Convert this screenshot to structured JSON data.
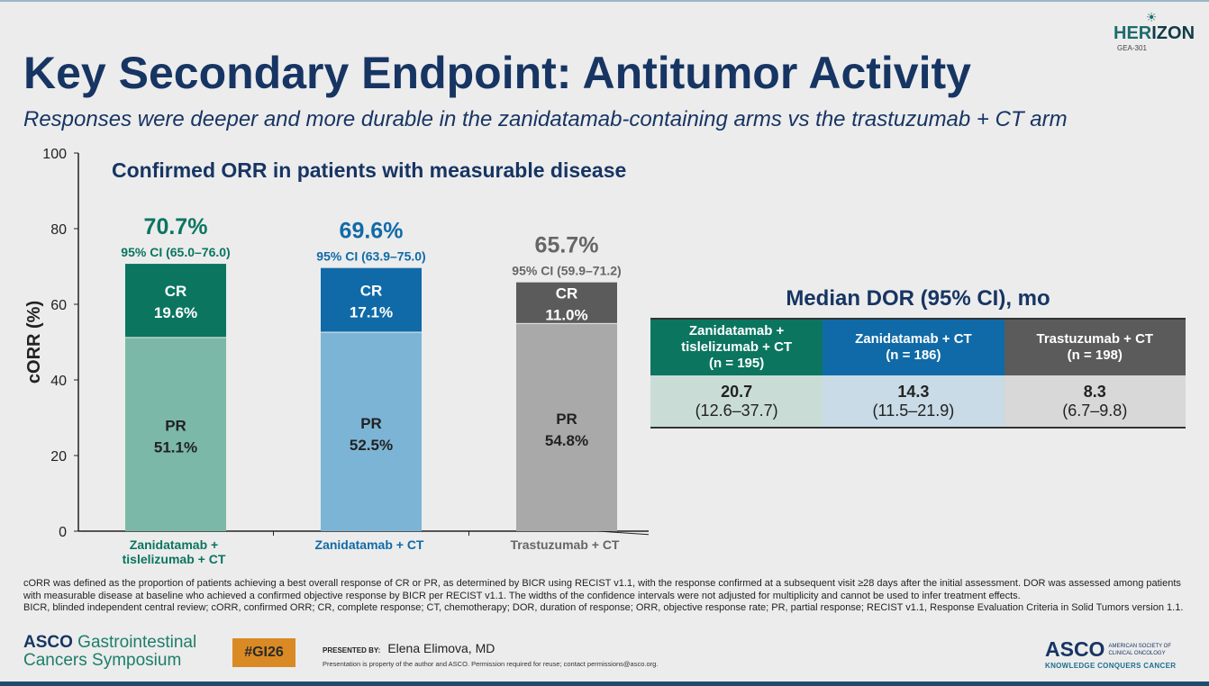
{
  "title": "Key Secondary Endpoint: Antitumor Activity",
  "subtitle": "Responses were deeper and more durable in the zanidatamab-containing arms vs the trastuzumab + CT arm",
  "logo": {
    "name_a": "HER",
    "name_b": "IZON",
    "sub": "GEA-301"
  },
  "chart_data": {
    "type": "bar",
    "stacked": true,
    "title": "Confirmed ORR in patients with measurable disease",
    "ylabel": "cORR (%)",
    "ylim": [
      0,
      100
    ],
    "yticks": [
      0,
      20,
      40,
      60,
      80,
      100
    ],
    "categories": [
      "Zanidatamab + tislelizumab + CT",
      "Zanidatamab + CT",
      "Trastuzumab + CT"
    ],
    "category_lines": [
      [
        "Zanidatamab +",
        "tislelizumab + CT"
      ],
      [
        "Zanidatamab + CT"
      ],
      [
        "Trastuzumab + CT"
      ]
    ],
    "series": [
      {
        "name": "PR",
        "values": [
          51.1,
          52.5,
          54.8
        ],
        "labels": [
          "51.1%",
          "52.5%",
          "54.8%"
        ]
      },
      {
        "name": "CR",
        "values": [
          19.6,
          17.1,
          11.0
        ],
        "labels": [
          "19.6%",
          "17.1%",
          "11.0%"
        ]
      }
    ],
    "totals": [
      "70.7%",
      "69.6%",
      "65.7%"
    ],
    "ci": [
      "95% CI (65.0–76.0)",
      "95% CI (63.9–75.0)",
      "95% CI (59.9–71.2)"
    ],
    "colors": {
      "cr": [
        "#0b7560",
        "#106aa8",
        "#5b5b5b"
      ],
      "pr": [
        "#7cb8a7",
        "#7cb4d5",
        "#a9a9a9"
      ],
      "label": [
        "#0b7560",
        "#106aa8",
        "#666666"
      ]
    }
  },
  "dor": {
    "title": "Median DOR (95% CI), mo",
    "columns": [
      {
        "l1": "Zanidatamab +",
        "l2": "tislelizumab + CT",
        "n": "(n = 195)",
        "median": "20.7",
        "ci": "(12.6–37.7)",
        "color": "#0b7560",
        "bg": "#c9ddd6"
      },
      {
        "l1": "",
        "l2": "Zanidatamab + CT",
        "n": "(n = 186)",
        "median": "14.3",
        "ci": "(11.5–21.9)",
        "color": "#106aa8",
        "bg": "#c8dbe6"
      },
      {
        "l1": "",
        "l2": "Trastuzumab + CT",
        "n": "(n = 198)",
        "median": "8.3",
        "ci": "(6.7–9.8)",
        "color": "#5b5b5b",
        "bg": "#d8d8d8"
      }
    ]
  },
  "footnotes": [
    "cORR was defined as the proportion of patients achieving a best overall response of CR or PR, as determined by BICR using RECIST v1.1, with the response confirmed at a subsequent visit ≥28 days after the initial assessment. DOR was assessed among patients with measurable disease at baseline who achieved a confirmed objective response by BICR per RECIST v1.1. The widths of the confidence intervals were not adjusted for multiplicity and cannot be used to infer treatment effects.",
    "BICR, blinded independent central review; cORR, confirmed ORR; CR, complete response; CT, chemotherapy; DOR, duration of response; ORR, objective response rate; PR, partial response; RECIST v1.1, Response Evaluation Criteria in Solid Tumors version 1.1."
  ],
  "footer": {
    "asco_left_a": "ASCO",
    "asco_left_b": " Gastrointestinal",
    "asco_left_c": "Cancers Symposium",
    "hashtag": "#GI26",
    "presented_by": "PRESENTED BY:",
    "presenter": "Elena Elimova, MD",
    "property": "Presentation is property of the author and ASCO. Permission required for reuse; contact permissions@asco.org.",
    "asco_right": "ASCO",
    "asco_right_small": "AMERICAN SOCIETY OF CLINICAL ONCOLOGY",
    "asco_tagline": "KNOWLEDGE CONQUERS CANCER"
  }
}
